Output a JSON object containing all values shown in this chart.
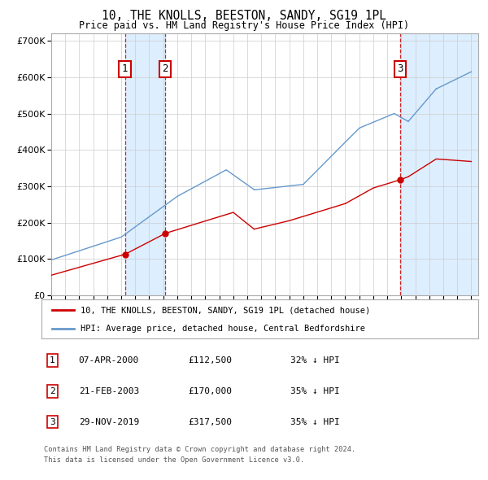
{
  "title": "10, THE KNOLLS, BEESTON, SANDY, SG19 1PL",
  "subtitle": "Price paid vs. HM Land Registry's House Price Index (HPI)",
  "footer_line1": "Contains HM Land Registry data © Crown copyright and database right 2024.",
  "footer_line2": "This data is licensed under the Open Government Licence v3.0.",
  "legend_red": "10, THE KNOLLS, BEESTON, SANDY, SG19 1PL (detached house)",
  "legend_blue": "HPI: Average price, detached house, Central Bedfordshire",
  "transactions": [
    {
      "num": 1,
      "date": "07-APR-2000",
      "price": 112500,
      "pct": "32% ↓ HPI",
      "year_x": 2000.27
    },
    {
      "num": 2,
      "date": "21-FEB-2003",
      "price": 170000,
      "pct": "35% ↓ HPI",
      "year_x": 2003.13
    },
    {
      "num": 3,
      "date": "29-NOV-2019",
      "price": 317500,
      "pct": "35% ↓ HPI",
      "year_x": 2019.91
    }
  ],
  "ylim": [
    0,
    720000
  ],
  "yticks": [
    0,
    100000,
    200000,
    300000,
    400000,
    500000,
    600000,
    700000
  ],
  "background_color": "#ffffff",
  "plot_bg_color": "#ffffff",
  "grid_color": "#cccccc",
  "red_color": "#cc0000",
  "blue_color": "#6699cc",
  "shade_color": "#ddeeff",
  "xmin": 1995.0,
  "xmax": 2025.5
}
